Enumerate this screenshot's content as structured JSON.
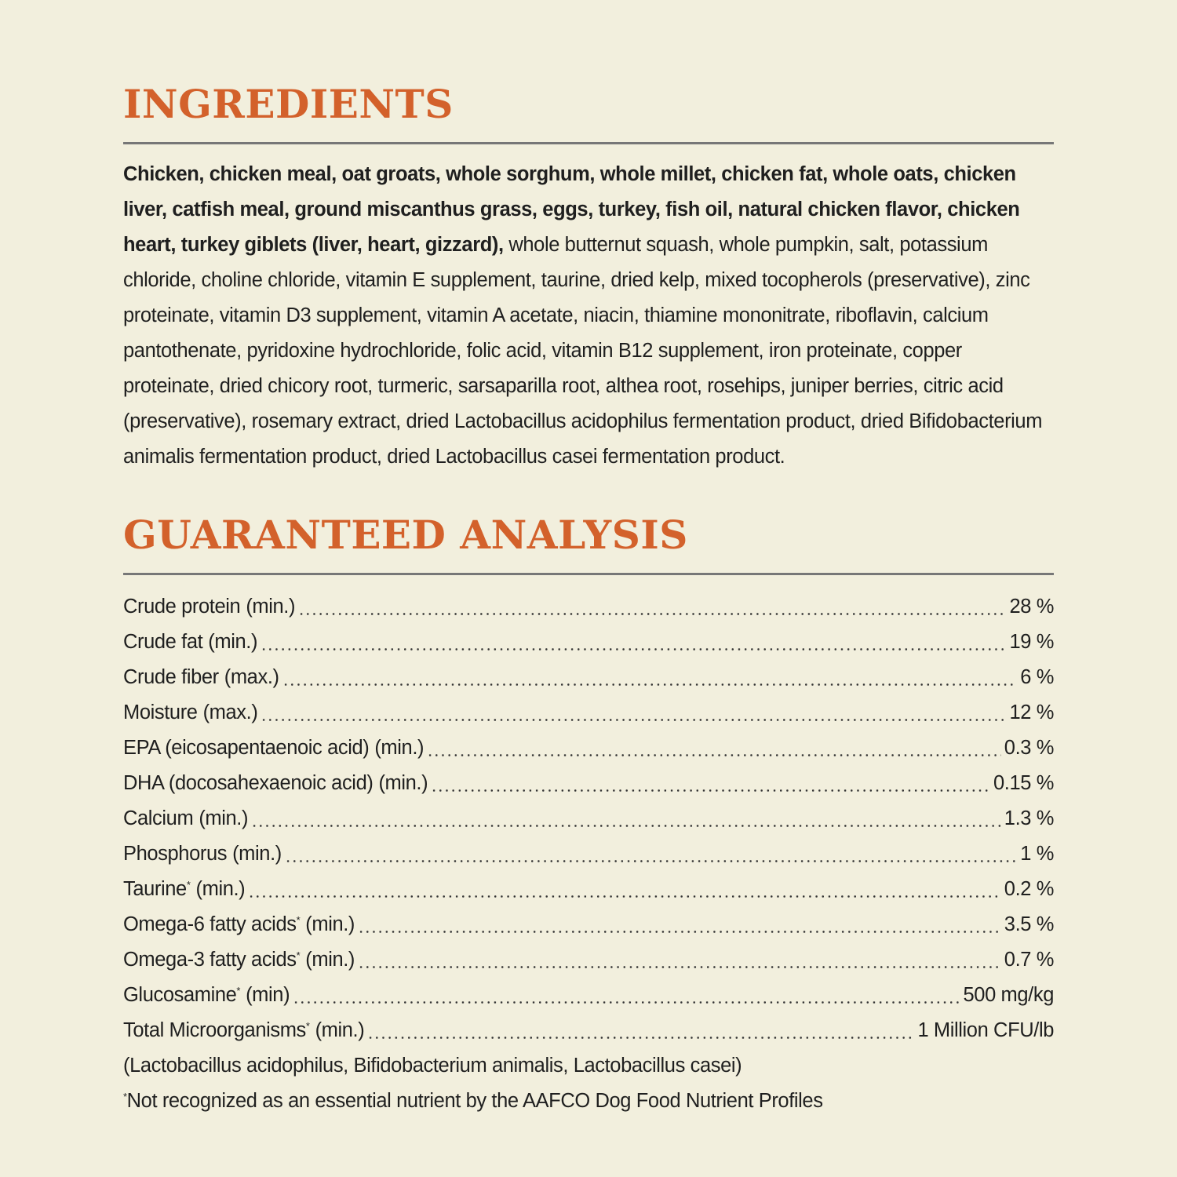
{
  "ingredients": {
    "heading": "INGREDIENTS",
    "bold_text": "Chicken, chicken meal, oat groats, whole sorghum, whole millet, chicken fat, whole oats, chicken liver, catfish meal, ground miscanthus grass, eggs, turkey, fish oil, natural chicken flavor, chicken heart, turkey giblets (liver, heart, gizzard),",
    "text": "whole butternut squash, whole pumpkin, salt, potassium chloride, choline chloride, vitamin E supplement, taurine, dried kelp, mixed tocopherols (preservative), zinc proteinate, vitamin D3 supplement, vitamin A acetate, niacin, thiamine mononitrate, riboflavin, calcium pantothenate, pyridoxine hydrochloride, folic acid, vitamin B12 supplement, iron proteinate, copper proteinate, dried chicory root, turmeric, sarsaparilla root, althea root, rosehips, juniper berries, citric acid (preservative), rosemary extract, dried Lactobacillus acidophilus fermentation product, dried Bifidobacterium animalis fermentation product, dried Lactobacillus casei fermentation product."
  },
  "analysis": {
    "heading": "GUARANTEED ANALYSIS",
    "rows": [
      {
        "label": "Crude protein",
        "qualifier": "(min.)",
        "value": "28 %"
      },
      {
        "label": "Crude fat",
        "qualifier": "(min.)",
        "value": "19 %"
      },
      {
        "label": "Crude fiber",
        "qualifier": "(max.)",
        "value": "6 %"
      },
      {
        "label": "Moisture",
        "qualifier": "(max.)",
        "value": "12 %"
      },
      {
        "label": "EPA (eicosapentaenoic acid)",
        "qualifier": "(min.)",
        "value": "0.3 %"
      },
      {
        "label": "DHA (docosahexaenoic acid)",
        "qualifier": "(min.)",
        "value": "0.15 %"
      },
      {
        "label": "Calcium",
        "qualifier": "(min.)",
        "value": "1.3 %"
      },
      {
        "label": "Phosphorus",
        "qualifier": "(min.)",
        "value": "1 %"
      },
      {
        "label": "Taurine",
        "mark": "*",
        "qualifier": "(min.)",
        "value": "0.2 %"
      },
      {
        "label": "Omega-6 fatty acids",
        "mark": "*",
        "qualifier": "(min.)",
        "value": "3.5 %"
      },
      {
        "label": "Omega-3 fatty acids",
        "mark": "*",
        "qualifier": "(min.)",
        "value": "0.7 %"
      },
      {
        "label": "Glucosamine",
        "mark": "*",
        "qualifier": "(min)",
        "value": "500 mg/kg"
      },
      {
        "label": "Total Microorganisms",
        "mark": "*",
        "qualifier": "(min.)",
        "value": "1 Million CFU/lb"
      }
    ],
    "microorganisms_note": "(Lactobacillus acidophilus, Bifidobacterium animalis, Lactobacillus casei)",
    "footnote": {
      "mark": "*",
      "text": "Not recognized as an essential nutrient by the AAFCO Dog Food Nutrient Profiles"
    }
  }
}
